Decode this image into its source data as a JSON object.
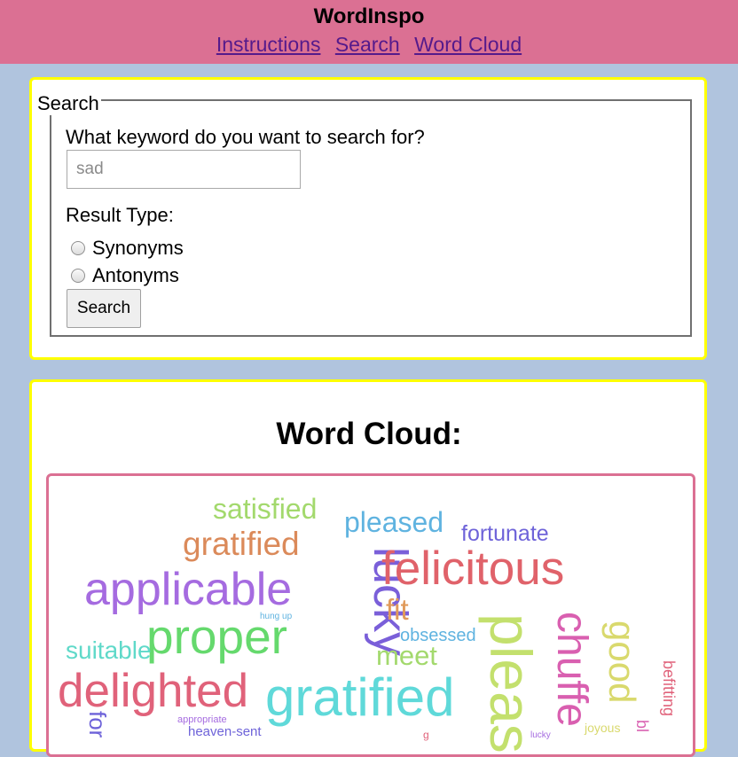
{
  "app": {
    "title": "WordInspo",
    "nav": [
      "Instructions",
      "Search",
      "Word Cloud"
    ]
  },
  "search": {
    "legend": "Search",
    "question": "What keyword do you want to search for?",
    "placeholder": "sad",
    "result_type_label": "Result Type:",
    "options": [
      "Synonyms",
      "Antonyms"
    ],
    "button": "Search"
  },
  "cloud": {
    "title": "Word Cloud:",
    "words": [
      {
        "text": "satisfied",
        "color": "#a3d96d"
      },
      {
        "text": "pleased",
        "color": "#5fb3e0"
      },
      {
        "text": "fortunate",
        "color": "#6e63d9"
      },
      {
        "text": "gratified",
        "color": "#db8a5a"
      },
      {
        "text": "lucky",
        "color": "#7a5fd9"
      },
      {
        "text": "felicitous",
        "color": "#e0626a"
      },
      {
        "text": "applicable",
        "color": "#a56be0"
      },
      {
        "text": "fit",
        "color": "#e09a5a"
      },
      {
        "text": "hung up",
        "color": "#5fb3e0"
      },
      {
        "text": "proper",
        "color": "#65d96d"
      },
      {
        "text": "obsessed",
        "color": "#5fb3e0"
      },
      {
        "text": "suitable",
        "color": "#5fd9c9"
      },
      {
        "text": "meet",
        "color": "#a3d96d"
      },
      {
        "text": "delighted",
        "color": "#e0627a"
      },
      {
        "text": "gratified",
        "color": "#5fd9d9"
      },
      {
        "text": "pleas",
        "color": "#c3e06d"
      },
      {
        "text": "chuffe",
        "color": "#d95fb0"
      },
      {
        "text": "good",
        "color": "#d9d96d"
      },
      {
        "text": "befitting",
        "color": "#e0627a"
      },
      {
        "text": "joyous",
        "color": "#d9d96d"
      },
      {
        "text": "appropriate",
        "color": "#a56be0"
      },
      {
        "text": "heaven-sent",
        "color": "#6e63d9"
      },
      {
        "text": "lucky",
        "color": "#a56be0"
      },
      {
        "text": "for",
        "color": "#6e63d9"
      },
      {
        "text": "bl",
        "color": "#d95fb0"
      },
      {
        "text": "g",
        "color": "#e0627a"
      }
    ]
  }
}
